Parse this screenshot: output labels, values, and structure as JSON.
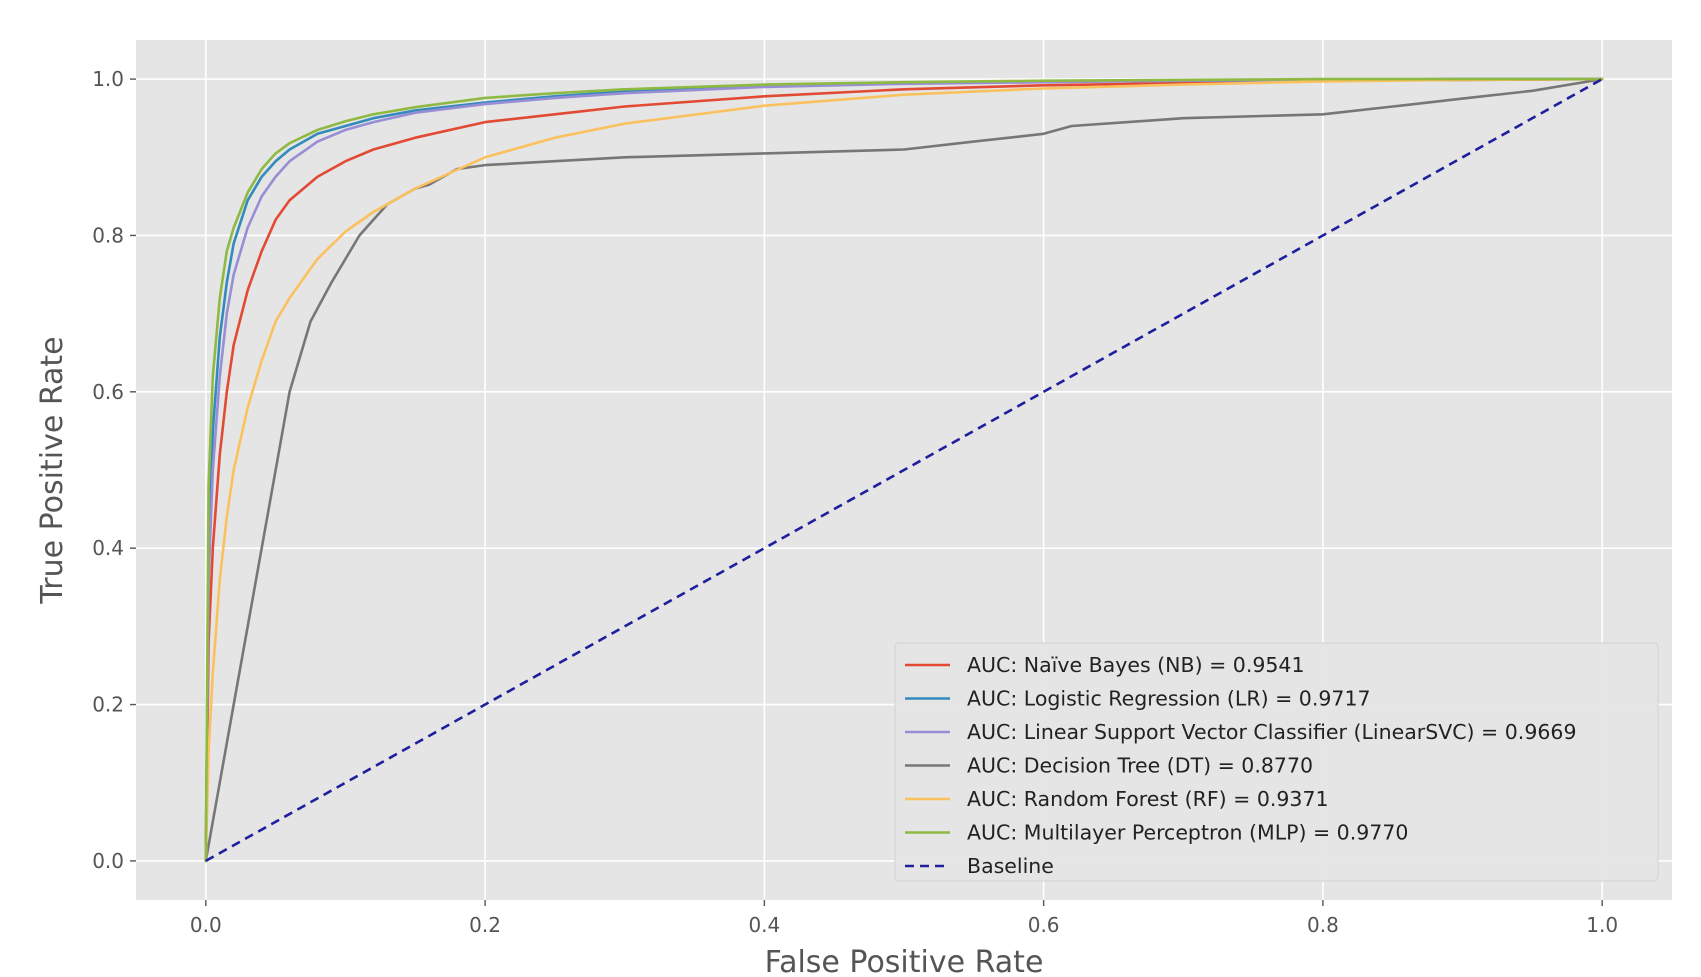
{
  "chart_data": {
    "type": "line",
    "title": "",
    "xlabel": "False Positive Rate",
    "ylabel": "True Positive Rate",
    "xlim": [
      -0.05,
      1.05
    ],
    "ylim": [
      -0.05,
      1.05
    ],
    "xticks": [
      0.0,
      0.2,
      0.4,
      0.6,
      0.8,
      1.0
    ],
    "yticks": [
      0.0,
      0.2,
      0.4,
      0.6,
      0.8,
      1.0
    ],
    "xtick_labels": [
      "0.0",
      "0.2",
      "0.4",
      "0.6",
      "0.8",
      "1.0"
    ],
    "ytick_labels": [
      "0.0",
      "0.2",
      "0.4",
      "0.6",
      "0.8",
      "1.0"
    ],
    "grid": true,
    "legend_position": "lower-right",
    "background": "#e5e5e5",
    "series": [
      {
        "name": "AUC: Naïve Bayes (NB) = 0.9541",
        "color": "#e24a33",
        "dash": "solid",
        "x": [
          0,
          0.002,
          0.005,
          0.01,
          0.015,
          0.02,
          0.03,
          0.04,
          0.05,
          0.06,
          0.08,
          0.1,
          0.12,
          0.15,
          0.2,
          0.25,
          0.3,
          0.4,
          0.5,
          0.6,
          0.7,
          0.8,
          0.9,
          1.0
        ],
        "y": [
          0,
          0.28,
          0.4,
          0.52,
          0.6,
          0.66,
          0.73,
          0.78,
          0.82,
          0.845,
          0.875,
          0.895,
          0.91,
          0.925,
          0.945,
          0.955,
          0.965,
          0.978,
          0.987,
          0.992,
          0.995,
          0.998,
          0.999,
          1.0
        ]
      },
      {
        "name": "AUC: Logistic Regression (LR) = 0.9717",
        "color": "#348abd",
        "dash": "solid",
        "x": [
          0,
          0.002,
          0.005,
          0.01,
          0.015,
          0.02,
          0.03,
          0.04,
          0.05,
          0.06,
          0.08,
          0.1,
          0.12,
          0.15,
          0.2,
          0.25,
          0.3,
          0.4,
          0.5,
          0.6,
          0.7,
          0.8,
          0.9,
          1.0
        ],
        "y": [
          0,
          0.4,
          0.55,
          0.67,
          0.74,
          0.79,
          0.845,
          0.875,
          0.895,
          0.91,
          0.93,
          0.94,
          0.95,
          0.96,
          0.97,
          0.978,
          0.984,
          0.991,
          0.995,
          0.997,
          0.998,
          0.999,
          1.0,
          1.0
        ]
      },
      {
        "name": "AUC: Linear Support Vector Classifier (LinearSVC) = 0.9669",
        "color": "#988ed5",
        "dash": "solid",
        "x": [
          0,
          0.002,
          0.005,
          0.01,
          0.015,
          0.02,
          0.03,
          0.04,
          0.05,
          0.06,
          0.08,
          0.1,
          0.12,
          0.15,
          0.2,
          0.25,
          0.3,
          0.4,
          0.5,
          0.6,
          0.7,
          0.8,
          0.9,
          1.0
        ],
        "y": [
          0,
          0.36,
          0.5,
          0.62,
          0.7,
          0.75,
          0.81,
          0.85,
          0.875,
          0.895,
          0.92,
          0.935,
          0.945,
          0.957,
          0.968,
          0.976,
          0.982,
          0.99,
          0.994,
          0.996,
          0.998,
          0.999,
          1.0,
          1.0
        ]
      },
      {
        "name": "AUC: Decision Tree (DT) = 0.8770",
        "color": "#777777",
        "dash": "solid",
        "x": [
          0,
          0.02,
          0.04,
          0.06,
          0.075,
          0.09,
          0.1,
          0.11,
          0.12,
          0.13,
          0.14,
          0.15,
          0.16,
          0.17,
          0.18,
          0.2,
          0.25,
          0.3,
          0.4,
          0.5,
          0.55,
          0.6,
          0.62,
          0.7,
          0.8,
          0.85,
          0.9,
          0.95,
          1.0
        ],
        "y": [
          0,
          0.2,
          0.4,
          0.6,
          0.69,
          0.74,
          0.77,
          0.8,
          0.82,
          0.84,
          0.85,
          0.86,
          0.865,
          0.875,
          0.885,
          0.89,
          0.895,
          0.9,
          0.905,
          0.91,
          0.92,
          0.93,
          0.94,
          0.95,
          0.955,
          0.965,
          0.975,
          0.985,
          1.0
        ]
      },
      {
        "name": "AUC: Random Forest (RF) = 0.9371",
        "color": "#fbc15e",
        "dash": "solid",
        "x": [
          0,
          0.002,
          0.005,
          0.01,
          0.015,
          0.02,
          0.03,
          0.04,
          0.05,
          0.06,
          0.08,
          0.1,
          0.12,
          0.15,
          0.2,
          0.25,
          0.3,
          0.4,
          0.5,
          0.6,
          0.7,
          0.8,
          0.9,
          1.0
        ],
        "y": [
          0,
          0.14,
          0.24,
          0.36,
          0.44,
          0.5,
          0.58,
          0.64,
          0.69,
          0.72,
          0.77,
          0.805,
          0.83,
          0.86,
          0.9,
          0.925,
          0.943,
          0.966,
          0.98,
          0.988,
          0.993,
          0.997,
          0.999,
          1.0
        ]
      },
      {
        "name": "AUC: Multilayer Perceptron (MLP) = 0.9770",
        "color": "#8eba42",
        "dash": "solid",
        "x": [
          0,
          0.002,
          0.005,
          0.01,
          0.015,
          0.02,
          0.03,
          0.04,
          0.05,
          0.06,
          0.08,
          0.1,
          0.12,
          0.15,
          0.2,
          0.25,
          0.3,
          0.4,
          0.5,
          0.6,
          0.7,
          0.8,
          0.9,
          1.0
        ],
        "y": [
          0,
          0.48,
          0.62,
          0.72,
          0.78,
          0.81,
          0.855,
          0.885,
          0.905,
          0.918,
          0.935,
          0.946,
          0.955,
          0.964,
          0.976,
          0.982,
          0.987,
          0.993,
          0.996,
          0.998,
          0.999,
          1.0,
          1.0,
          1.0
        ]
      },
      {
        "name": "Baseline",
        "color": "#1f1f9e",
        "dash": "dashed",
        "x": [
          0,
          1
        ],
        "y": [
          0,
          1
        ]
      }
    ]
  }
}
